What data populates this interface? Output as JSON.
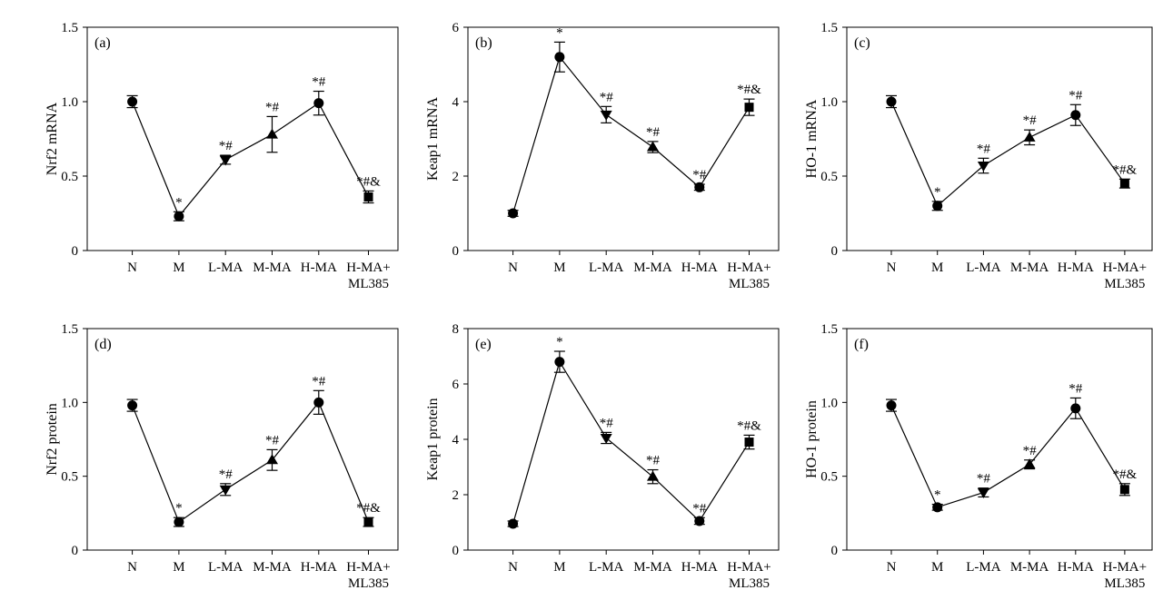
{
  "chart_data": [
    {
      "type": "line",
      "panel_label": "(a)",
      "ylabel": "Nrf2 mRNA",
      "categories": [
        "N",
        "M",
        "L-MA",
        "M-MA",
        "H-MA",
        "H-MA+\nML385"
      ],
      "ylim": [
        0,
        1.5
      ],
      "yticks": [
        0,
        0.5,
        1.0,
        1.5
      ],
      "ytick_labels": [
        "0",
        "0.5",
        "1.0",
        "1.5"
      ],
      "values": [
        1.0,
        0.23,
        0.61,
        0.78,
        0.99,
        0.36
      ],
      "errors": [
        0.04,
        0.03,
        0.03,
        0.12,
        0.08,
        0.04
      ],
      "markers": [
        "circle",
        "circle",
        "triangle-down",
        "triangle-up",
        "circle",
        "square"
      ],
      "sig_labels": [
        "",
        "*",
        "*#",
        "*#",
        "*#",
        "*#&"
      ]
    },
    {
      "type": "line",
      "panel_label": "(b)",
      "ylabel": "Keap1 mRNA",
      "categories": [
        "N",
        "M",
        "L-MA",
        "M-MA",
        "H-MA",
        "H-MA+\nML385"
      ],
      "ylim": [
        0,
        6
      ],
      "yticks": [
        0,
        2,
        4,
        6
      ],
      "ytick_labels": [
        "0",
        "2",
        "4",
        "6"
      ],
      "values": [
        1.0,
        5.2,
        3.65,
        2.78,
        1.7,
        3.85
      ],
      "errors": [
        0.08,
        0.4,
        0.22,
        0.15,
        0.08,
        0.22
      ],
      "markers": [
        "circle",
        "circle",
        "triangle-down",
        "triangle-up",
        "circle",
        "square"
      ],
      "sig_labels": [
        "",
        "*",
        "*#",
        "*#",
        "*#",
        "*#&"
      ]
    },
    {
      "type": "line",
      "panel_label": "(c)",
      "ylabel": "HO-1 mRNA",
      "categories": [
        "N",
        "M",
        "L-MA",
        "M-MA",
        "H-MA",
        "H-MA+\nML385"
      ],
      "ylim": [
        0,
        1.5
      ],
      "yticks": [
        0,
        0.5,
        1.0,
        1.5
      ],
      "ytick_labels": [
        "0",
        "0.5",
        "1.0",
        "1.5"
      ],
      "values": [
        1.0,
        0.3,
        0.57,
        0.76,
        0.91,
        0.45
      ],
      "errors": [
        0.04,
        0.03,
        0.05,
        0.05,
        0.07,
        0.03
      ],
      "markers": [
        "circle",
        "circle",
        "triangle-down",
        "triangle-up",
        "circle",
        "square"
      ],
      "sig_labels": [
        "",
        "*",
        "*#",
        "*#",
        "*#",
        "*#&"
      ]
    },
    {
      "type": "line",
      "panel_label": "(d)",
      "ylabel": "Nrf2 protein",
      "categories": [
        "N",
        "M",
        "L-MA",
        "M-MA",
        "H-MA",
        "H-MA+\nML385"
      ],
      "ylim": [
        0,
        1.5
      ],
      "yticks": [
        0,
        0.5,
        1.0,
        1.5
      ],
      "ytick_labels": [
        "0",
        "0.5",
        "1.0",
        "1.5"
      ],
      "values": [
        0.98,
        0.19,
        0.41,
        0.61,
        1.0,
        0.19
      ],
      "errors": [
        0.04,
        0.03,
        0.04,
        0.07,
        0.08,
        0.03
      ],
      "markers": [
        "circle",
        "circle",
        "triangle-down",
        "triangle-up",
        "circle",
        "square"
      ],
      "sig_labels": [
        "",
        "*",
        "*#",
        "*#",
        "*#",
        "*#&"
      ]
    },
    {
      "type": "line",
      "panel_label": "(e)",
      "ylabel": "Keap1 protein",
      "categories": [
        "N",
        "M",
        "L-MA",
        "M-MA",
        "H-MA",
        "H-MA+\nML385"
      ],
      "ylim": [
        0,
        8
      ],
      "yticks": [
        0,
        2,
        4,
        6,
        8
      ],
      "ytick_labels": [
        "0",
        "2",
        "4",
        "6",
        "8"
      ],
      "values": [
        0.95,
        6.8,
        4.05,
        2.65,
        1.05,
        3.9
      ],
      "errors": [
        0.1,
        0.38,
        0.2,
        0.25,
        0.12,
        0.25
      ],
      "markers": [
        "circle",
        "circle",
        "triangle-down",
        "triangle-up",
        "circle",
        "square"
      ],
      "sig_labels": [
        "",
        "*",
        "*#",
        "*#",
        "*#",
        "*#&"
      ]
    },
    {
      "type": "line",
      "panel_label": "(f)",
      "ylabel": "HO-1 protein",
      "categories": [
        "N",
        "M",
        "L-MA",
        "M-MA",
        "H-MA",
        "H-MA+\nML385"
      ],
      "ylim": [
        0,
        1.5
      ],
      "yticks": [
        0,
        0.5,
        1.0,
        1.5
      ],
      "ytick_labels": [
        "0",
        "0.5",
        "1.0",
        "1.5"
      ],
      "values": [
        0.98,
        0.29,
        0.39,
        0.58,
        0.96,
        0.41
      ],
      "errors": [
        0.04,
        0.02,
        0.03,
        0.03,
        0.07,
        0.04
      ],
      "markers": [
        "circle",
        "circle",
        "triangle-down",
        "triangle-up",
        "circle",
        "square"
      ],
      "sig_labels": [
        "",
        "*",
        "*#",
        "*#",
        "*#",
        "*#&"
      ]
    }
  ]
}
